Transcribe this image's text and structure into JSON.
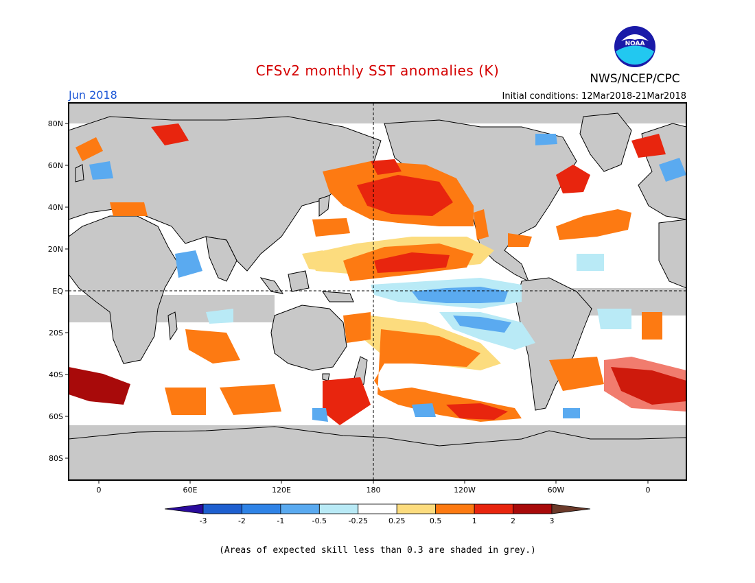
{
  "header": {
    "title": "CFSv2 monthly SST anomalies (K)",
    "credit": "NWS/NCEP/CPC",
    "logo_text": "NOAA",
    "forecast_month": "Jun 2018",
    "initial_conditions": "Initial conditions: 12Mar2018-21Mar2018"
  },
  "map": {
    "lat_ticks": [
      "80N",
      "60N",
      "40N",
      "20N",
      "EQ",
      "20S",
      "40S",
      "60S",
      "80S"
    ],
    "lon_ticks": [
      "0",
      "60E",
      "120E",
      "180",
      "120W",
      "60W",
      "0"
    ],
    "land_color": "#c8c8c8",
    "grey_skill_color": "#c8c8c8",
    "ocean_neutral_color": "#ffffff"
  },
  "colorbar": {
    "labels": [
      "-3",
      "-2",
      "-1",
      "-0.5",
      "-0.25",
      "0.25",
      "0.5",
      "1",
      "2",
      "3"
    ],
    "colors": [
      "#2a0b9c",
      "#1e5fcf",
      "#2f83e6",
      "#5aaaf0",
      "#b9eaf6",
      "#ffffff",
      "#fcdc7e",
      "#fd7a12",
      "#e8250e",
      "#a80a0a",
      "#6b3a2a"
    ]
  },
  "footnote": "(Areas of expected skill less than 0.3 are shaded in grey.)"
}
